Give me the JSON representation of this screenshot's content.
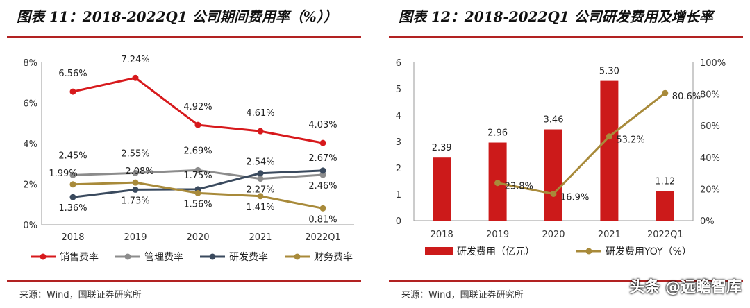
{
  "charts": [
    {
      "title": "图表 11：2018-2022Q1 公司期间费用率（%））",
      "source": "来源：Wind，国联证券研究所",
      "chart_data": {
        "type": "line",
        "categories": [
          "2018",
          "2019",
          "2020",
          "2021",
          "2022Q1"
        ],
        "y_ticks": [
          "0%",
          "2%",
          "4%",
          "6%",
          "8%"
        ],
        "ylim": [
          0,
          8
        ],
        "series": [
          {
            "name": "销售费率",
            "color": "#d7191c",
            "values": [
              6.56,
              7.24,
              4.92,
              4.61,
              4.03
            ],
            "labels": [
              "6.56%",
              "7.24%",
              "4.92%",
              "4.61%",
              "4.03%"
            ]
          },
          {
            "name": "管理费率",
            "color": "#8c8c8c",
            "values": [
              2.45,
              2.55,
              2.69,
              2.27,
              2.46
            ],
            "labels": [
              "2.45%",
              "2.55%",
              "2.69%",
              "2.27%",
              "2.46%"
            ]
          },
          {
            "name": "研发费率",
            "color": "#3a4a5e",
            "values": [
              1.36,
              1.73,
              1.75,
              2.54,
              2.67
            ],
            "labels": [
              "1.36%",
              "1.73%",
              "1.75%",
              "2.54%",
              "2.67%"
            ]
          },
          {
            "name": "财务费率",
            "color": "#a88a3a",
            "values": [
              1.99,
              2.08,
              1.56,
              1.41,
              0.81
            ],
            "labels": [
              "1.99%",
              "2.08%",
              "1.56%",
              "1.41%",
              "0.81%"
            ]
          }
        ]
      }
    },
    {
      "title": "图表 12：2018-2022Q1 公司研发费用及增长率",
      "source": "来源：Wind，国联证券研究所",
      "chart_data": {
        "type": "bar",
        "categories": [
          "2018",
          "2019",
          "2020",
          "2021",
          "2022Q1"
        ],
        "y_ticks": [
          "0",
          "1",
          "2",
          "3",
          "4",
          "5",
          "6"
        ],
        "ylim": [
          0,
          6
        ],
        "y2_ticks": [
          "0%",
          "20%",
          "40%",
          "60%",
          "80%",
          "100%"
        ],
        "y2lim": [
          0,
          100
        ],
        "bar_series": {
          "name": "研发费用（亿元）",
          "color": "#cc1a1a",
          "values": [
            2.39,
            2.96,
            3.46,
            5.3,
            1.12
          ],
          "labels": [
            "2.39",
            "2.96",
            "3.46",
            "5.30",
            "1.12"
          ]
        },
        "line_series": {
          "name": "研发费用YOY（%）",
          "color": "#a88a3a",
          "values": [
            23.8,
            16.9,
            53.2,
            80.6
          ],
          "categories": [
            "2019",
            "2020",
            "2021",
            "2022Q1"
          ],
          "labels": [
            "23.8%",
            "16.9%",
            "53.2%",
            "80.6%"
          ]
        }
      }
    }
  ],
  "watermark": "头条 @远瞻智库"
}
